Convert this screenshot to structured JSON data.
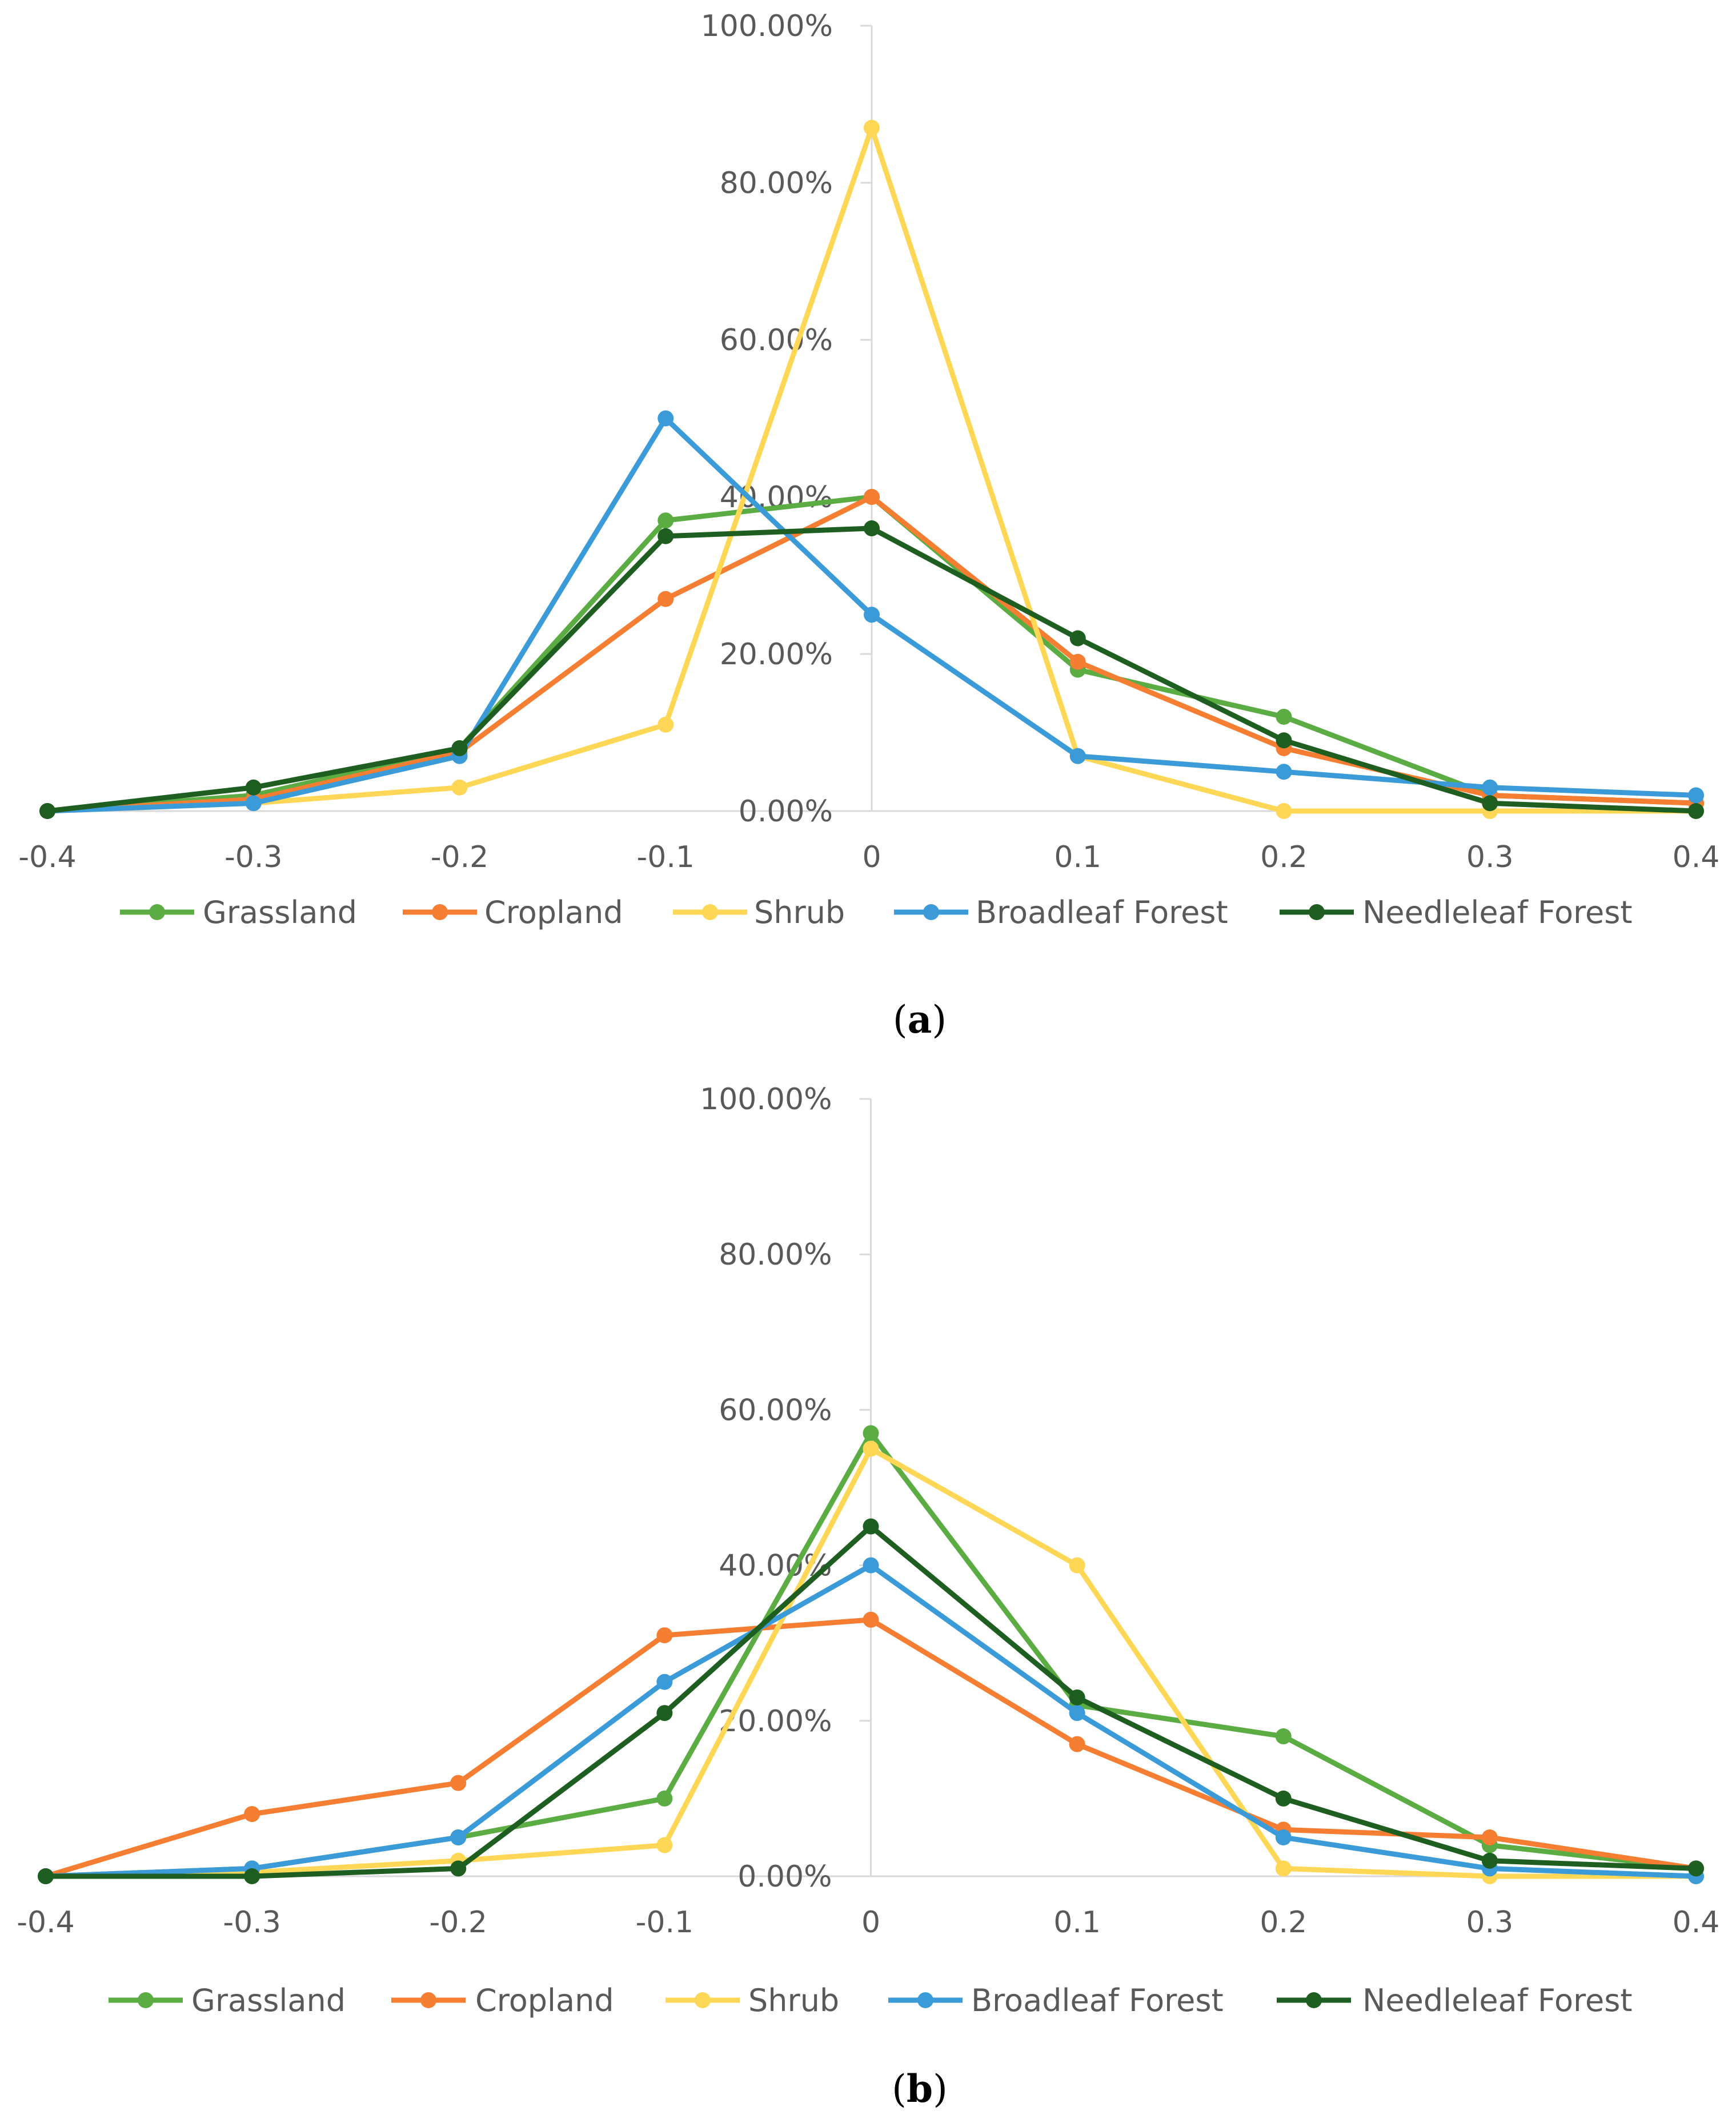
{
  "chart_data": [
    {
      "type": "line",
      "caption": "a",
      "x": [
        -0.4,
        -0.3,
        -0.2,
        -0.1,
        0,
        0.1,
        0.2,
        0.3,
        0.4
      ],
      "x_tick_labels": [
        "-0.4",
        "-0.3",
        "-0.2",
        "-0.1",
        "0",
        "0.1",
        "0.2",
        "0.3",
        "0.4"
      ],
      "ylim": [
        0,
        100
      ],
      "y_ticks": [
        0,
        20,
        40,
        60,
        80,
        100
      ],
      "y_tick_labels": [
        "0.00%",
        "20.00%",
        "40.00%",
        "60.00%",
        "80.00%",
        "100.00%"
      ],
      "legend_position": "bottom",
      "grid": false,
      "series": [
        {
          "name": "Grassland",
          "color": "#5aac43",
          "values": [
            0,
            2,
            8,
            37,
            40,
            18,
            12,
            2,
            1
          ]
        },
        {
          "name": "Cropland",
          "color": "#f57e32",
          "values": [
            0,
            1.5,
            7.5,
            27,
            40,
            19,
            8,
            2,
            1
          ]
        },
        {
          "name": "Shrub",
          "color": "#ffd756",
          "values": [
            0,
            1,
            3,
            11,
            87,
            7,
            0,
            0,
            0
          ]
        },
        {
          "name": "Broadleaf Forest",
          "color": "#3b9bd9",
          "values": [
            0,
            1,
            7,
            50,
            25,
            7,
            5,
            3,
            2
          ]
        },
        {
          "name": "Needleleaf Forest",
          "color": "#1e5e20",
          "values": [
            0,
            3,
            8,
            35,
            36,
            22,
            9,
            1,
            0
          ]
        }
      ]
    },
    {
      "type": "line",
      "caption": "b",
      "x": [
        -0.4,
        -0.3,
        -0.2,
        -0.1,
        0,
        0.1,
        0.2,
        0.3,
        0.4
      ],
      "x_tick_labels": [
        "-0.4",
        "-0.3",
        "-0.2",
        "-0.1",
        "0",
        "0.1",
        "0.2",
        "0.3",
        "0.4"
      ],
      "ylim": [
        0,
        100
      ],
      "y_ticks": [
        0,
        20,
        40,
        60,
        80,
        100
      ],
      "y_tick_labels": [
        "0.00%",
        "20.00%",
        "40.00%",
        "60.00%",
        "80.00%",
        "100.00%"
      ],
      "legend_position": "bottom",
      "grid": false,
      "series": [
        {
          "name": "Grassland",
          "color": "#5aac43",
          "values": [
            0,
            1,
            5,
            10,
            57,
            22,
            18,
            4,
            1
          ]
        },
        {
          "name": "Cropland",
          "color": "#f57e32",
          "values": [
            0,
            8,
            12,
            31,
            33,
            17,
            6,
            5,
            1
          ]
        },
        {
          "name": "Shrub",
          "color": "#ffd756",
          "values": [
            0,
            0.5,
            2,
            4,
            55,
            40,
            1,
            0,
            0
          ]
        },
        {
          "name": "Broadleaf Forest",
          "color": "#3b9bd9",
          "values": [
            0,
            1,
            5,
            25,
            40,
            21,
            5,
            1,
            0
          ]
        },
        {
          "name": "Needleleaf Forest",
          "color": "#1e5e20",
          "values": [
            0,
            0,
            1,
            21,
            45,
            23,
            10,
            2,
            1
          ]
        }
      ]
    }
  ]
}
